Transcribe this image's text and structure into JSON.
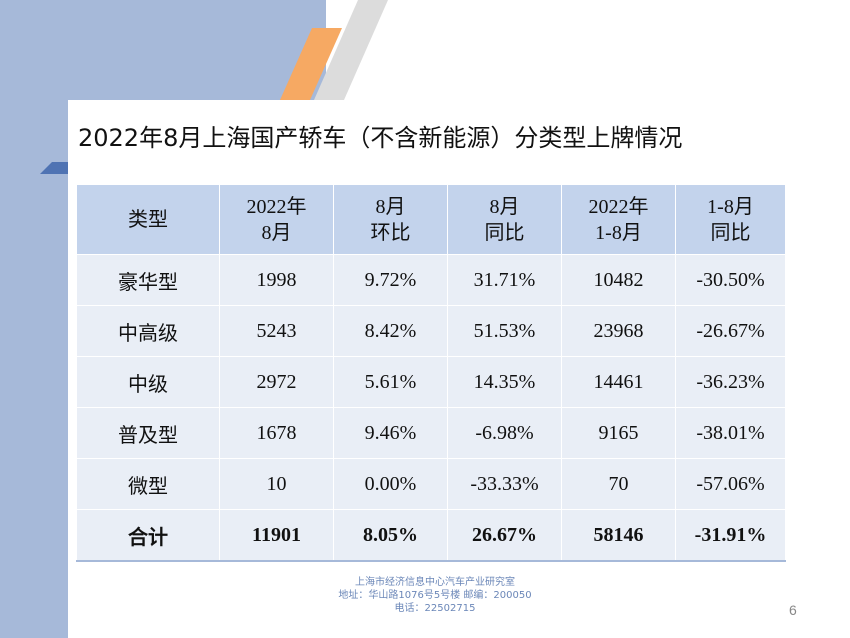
{
  "title": "2022年8月上海国产轿车（不含新能源）分类型上牌情况",
  "table": {
    "headers": [
      [
        "类型"
      ],
      [
        "2022年",
        "8月"
      ],
      [
        "8月",
        "环比"
      ],
      [
        "8月",
        "同比"
      ],
      [
        "2022年",
        "1-8月"
      ],
      [
        "1-8月",
        "同比"
      ]
    ],
    "rows": [
      [
        "豪华型",
        "1998",
        "9.72%",
        "31.71%",
        "10482",
        "-30.50%"
      ],
      [
        "中高级",
        "5243",
        "8.42%",
        "51.53%",
        "23968",
        "-26.67%"
      ],
      [
        "中级",
        "2972",
        "5.61%",
        "14.35%",
        "14461",
        "-36.23%"
      ],
      [
        "普及型",
        "1678",
        "9.46%",
        "-6.98%",
        "9165",
        "-38.01%"
      ],
      [
        "微型",
        "10",
        "0.00%",
        "-33.33%",
        "70",
        "-57.06%"
      ]
    ],
    "total": [
      "合计",
      "11901",
      "8.05%",
      "26.67%",
      "58146",
      "-31.91%"
    ]
  },
  "footer": {
    "line1": "上海市经济信息中心汽车产业研究室",
    "line2": "地址：华山路1076号5号楼    邮编：200050",
    "line3": "电话：22502715"
  },
  "page_number": "6",
  "colors": {
    "band": "#a6b9d9",
    "header_cell": "#c3d3ec",
    "body_cell": "#e9eef6",
    "accent_orange": "#f6a963",
    "bar_blue": "#4f73b3"
  }
}
